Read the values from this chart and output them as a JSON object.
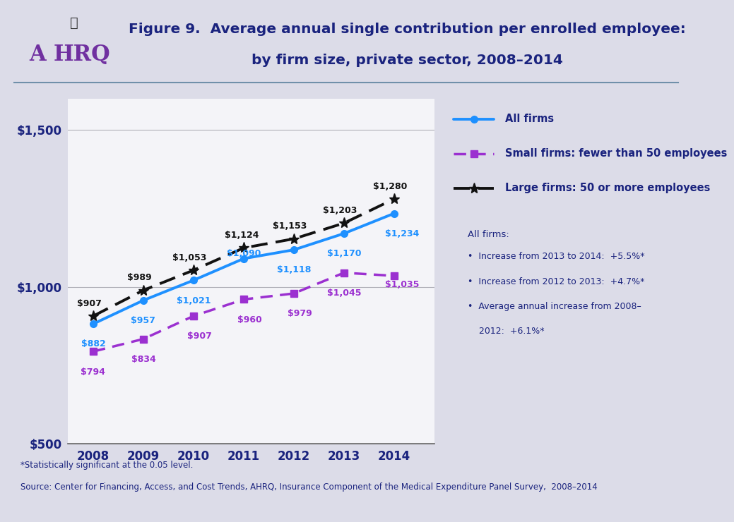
{
  "title_line1": "Figure 9.  Average annual single contribution per enrolled employee:",
  "title_line2": "by firm size, private sector, 2008–2014",
  "years": [
    2008,
    2009,
    2010,
    2011,
    2012,
    2013,
    2014
  ],
  "all_firms": [
    882,
    957,
    1021,
    1090,
    1118,
    1170,
    1234
  ],
  "small_firms": [
    794,
    834,
    907,
    960,
    979,
    1045,
    1035
  ],
  "large_firms": [
    907,
    989,
    1053,
    1124,
    1153,
    1203,
    1280
  ],
  "all_firms_color": "#1e90ff",
  "small_firms_color": "#9b30d0",
  "large_firms_color": "#111111",
  "ylim": [
    500,
    1600
  ],
  "yticks": [
    500,
    1000,
    1500
  ],
  "ytick_labels": [
    "$500",
    "$1,000",
    "$1,500"
  ],
  "legend_all": "All firms",
  "legend_small": "Small firms: fewer than 50 employees",
  "legend_large": "Large firms: 50 or more employees",
  "ann_title": "All firms:",
  "ann_line1": "Increase from 2013 to 2014:  +5.5%*",
  "ann_line2": "Increase from 2012 to 2013:  +4.7%*",
  "ann_line3a": "Average annual increase from 2008–",
  "ann_line3b": "2012:  +6.1%*",
  "footer1": "*Statistically significant at the 0.05 level.",
  "footer2": "Source: Center for Financing, Access, and Cost Trends, AHRQ, Insurance Component of the Medical Expenditure Panel Survey,  2008–2014",
  "bg_color": "#dcdce8",
  "plot_bg": "#f4f4f8",
  "navy": "#1a237e",
  "text_dark": "#1a237e"
}
